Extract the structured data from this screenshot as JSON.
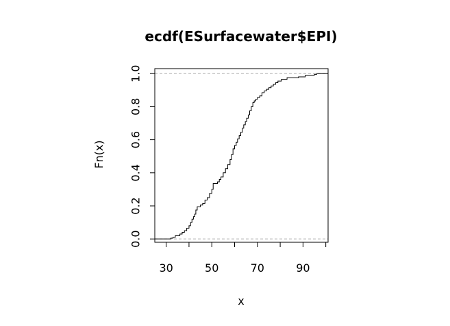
{
  "chart_data": {
    "type": "line",
    "title": "ecdf(ESurfacewater$EPI)",
    "xlabel": "x",
    "ylabel": "Fn(x)",
    "xlim": [
      25,
      101
    ],
    "ylim": [
      -0.02,
      1.03
    ],
    "x_ticks": [
      30,
      50,
      70,
      90
    ],
    "x_tick_labels": [
      "30",
      "50",
      "70",
      "90"
    ],
    "x_minor_ticks": [
      30,
      40,
      50,
      60,
      70,
      80,
      90,
      100
    ],
    "y_ticks": [
      0.0,
      0.2,
      0.4,
      0.6,
      0.8,
      1.0
    ],
    "y_tick_labels": [
      "0.0",
      "0.2",
      "0.4",
      "0.6",
      "0.8",
      "1.0"
    ],
    "reference_lines": [
      0,
      1
    ],
    "grid": false,
    "series": [
      {
        "style": "step",
        "points": [
          [
            25,
            0.0
          ],
          [
            32,
            0.005
          ],
          [
            33,
            0.01
          ],
          [
            34,
            0.02
          ],
          [
            36,
            0.03
          ],
          [
            37,
            0.04
          ],
          [
            38,
            0.05
          ],
          [
            39,
            0.065
          ],
          [
            40,
            0.08
          ],
          [
            40.7,
            0.1
          ],
          [
            41.3,
            0.12
          ],
          [
            42,
            0.135
          ],
          [
            42.5,
            0.15
          ],
          [
            43,
            0.175
          ],
          [
            43.6,
            0.195
          ],
          [
            45,
            0.205
          ],
          [
            46,
            0.215
          ],
          [
            47,
            0.235
          ],
          [
            48,
            0.25
          ],
          [
            49,
            0.275
          ],
          [
            50,
            0.3
          ],
          [
            50.6,
            0.335
          ],
          [
            52.5,
            0.345
          ],
          [
            53.3,
            0.36
          ],
          [
            54,
            0.375
          ],
          [
            55,
            0.4
          ],
          [
            56,
            0.425
          ],
          [
            57,
            0.45
          ],
          [
            58,
            0.48
          ],
          [
            58.6,
            0.51
          ],
          [
            59.3,
            0.545
          ],
          [
            60,
            0.565
          ],
          [
            60.7,
            0.585
          ],
          [
            61.3,
            0.605
          ],
          [
            62,
            0.625
          ],
          [
            62.7,
            0.645
          ],
          [
            63.4,
            0.67
          ],
          [
            64,
            0.69
          ],
          [
            64.7,
            0.71
          ],
          [
            65.3,
            0.73
          ],
          [
            66,
            0.75
          ],
          [
            66.6,
            0.775
          ],
          [
            67.3,
            0.8
          ],
          [
            68,
            0.825
          ],
          [
            68.6,
            0.835
          ],
          [
            69.3,
            0.845
          ],
          [
            70,
            0.855
          ],
          [
            71,
            0.865
          ],
          [
            72,
            0.885
          ],
          [
            73,
            0.895
          ],
          [
            74,
            0.905
          ],
          [
            75,
            0.915
          ],
          [
            76,
            0.925
          ],
          [
            77,
            0.935
          ],
          [
            78,
            0.945
          ],
          [
            79,
            0.955
          ],
          [
            80.5,
            0.965
          ],
          [
            83,
            0.975
          ],
          [
            88,
            0.98
          ],
          [
            91,
            0.99
          ],
          [
            95,
            0.995
          ],
          [
            96,
            1.0
          ],
          [
            101,
            1.0
          ]
        ]
      }
    ]
  }
}
